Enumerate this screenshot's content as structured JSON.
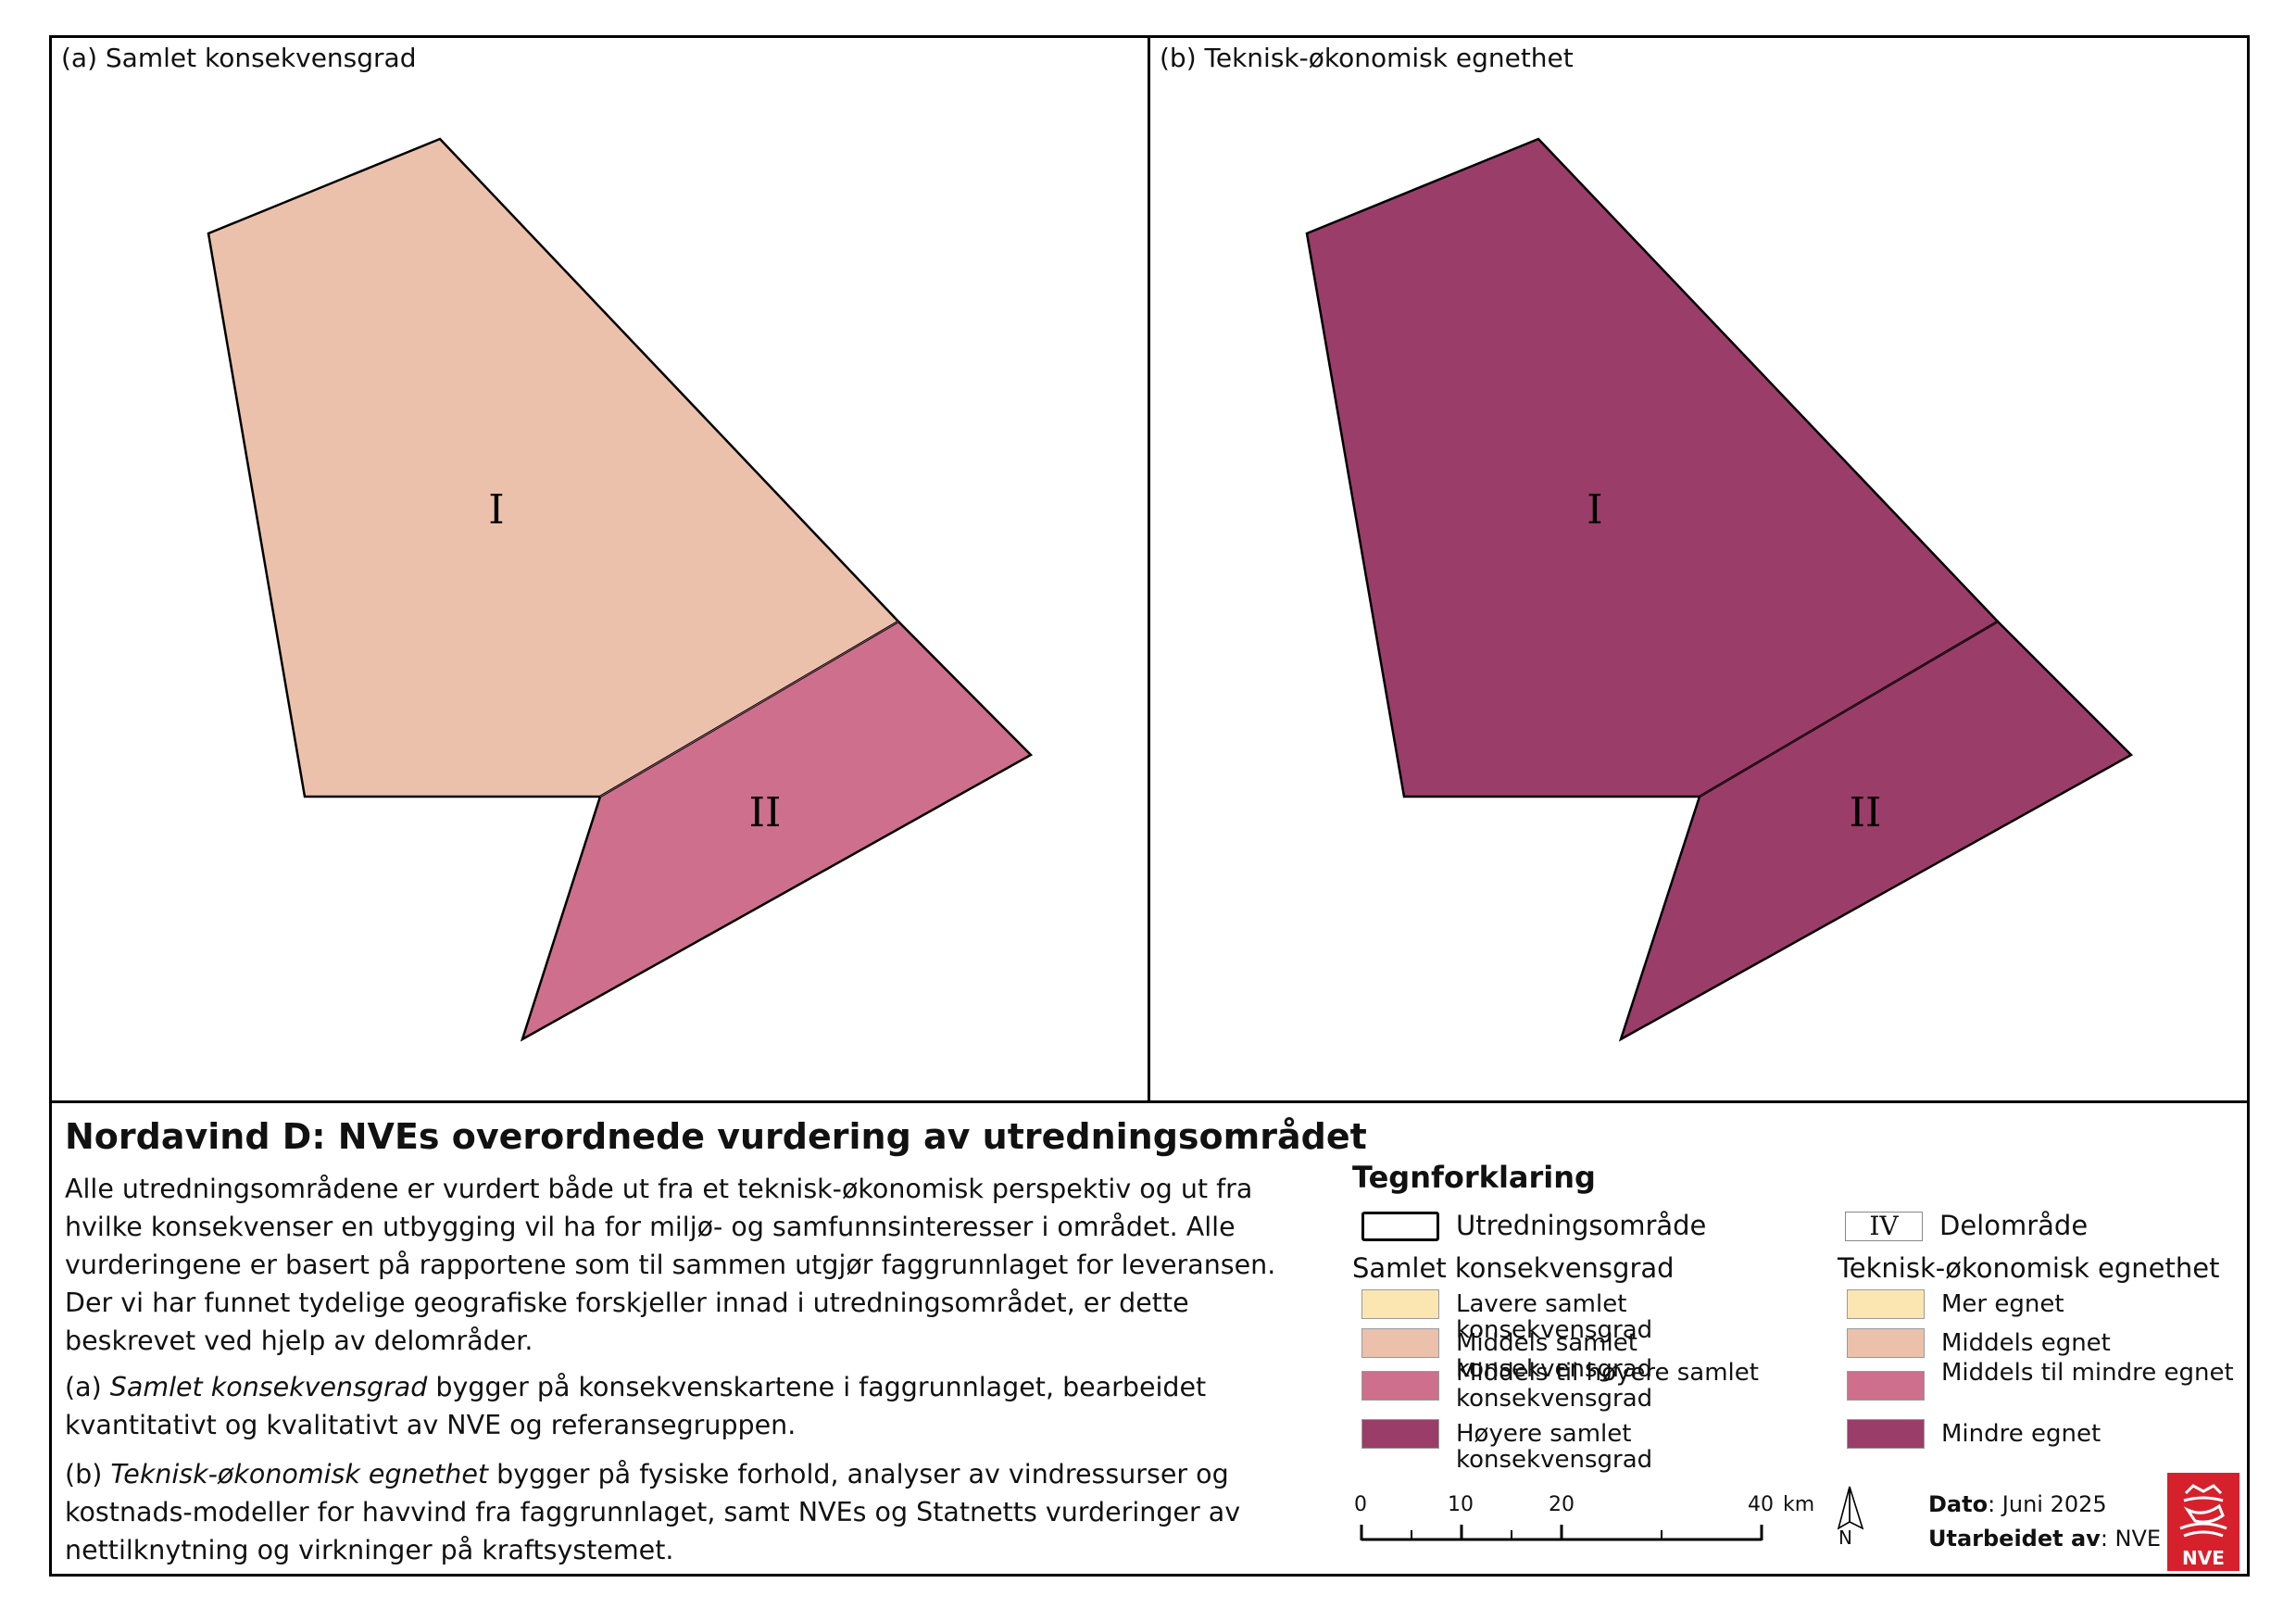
{
  "panels": [
    {
      "title": "(a) Samlet konsekvensgrad",
      "area_labels": [
        "I",
        "II"
      ],
      "colors": [
        "#ecc1ac",
        "#cd6f8d"
      ]
    },
    {
      "title": "(b) Teknisk-økonomisk egnethet",
      "area_labels": [
        "I",
        "II"
      ],
      "colors": [
        "#9b3d69",
        "#9b3d69"
      ]
    }
  ],
  "text": {
    "title": "Nordavind D: NVEs overordnede vurdering av utredningsområdet",
    "intro": "Alle utredningsområdene er vurdert både ut fra et teknisk-økonomisk perspektiv og ut fra hvilke konsekvenser en utbygging vil ha for miljø- og samfunnsinteresser i området. Alle vurderingene er basert på rapportene som til sammen utgjør faggrunnlaget for leveransen. Der vi har funnet tydelige geografiske forskjeller innad i utredningsområdet, er dette beskrevet ved hjelp av delområder.",
    "a_prefix": "(a) ",
    "a_term": "Samlet konsekvensgrad",
    "a_rest": " bygger på konsekvenskartene i faggrunnlaget, bearbeidet kvantitativt og kvalitativt av NVE og referansegruppen.",
    "b_prefix": "(b) ",
    "b_term": "Teknisk-økonomisk egnethet",
    "b_rest": " bygger på fysiske forhold, analyser av vindressurser og kostnads-modeller for havvind fra faggrunnlaget, samt NVEs og Statnetts vurderinger av nettilknytning og virkninger på kraftsystemet."
  },
  "legend": {
    "title": "Tegnforklaring",
    "outline_label": "Utredningsområde",
    "subarea_symbol": "IV",
    "subarea_label": "Delområde",
    "left_heading": "Samlet konsekvensgrad",
    "right_heading": "Teknisk-økonomisk egnethet",
    "left_items": [
      {
        "label": "Lavere samlet konsekvensgrad",
        "color": "#fbe6b1"
      },
      {
        "label": "Middels samlet konsekvensgrad",
        "color": "#ecc1ac"
      },
      {
        "label": "Middels til høyere samlet konsekvensgrad",
        "color": "#cd6f8d"
      },
      {
        "label": "Høyere samlet konsekvensgrad",
        "color": "#9b3d69"
      }
    ],
    "right_items": [
      {
        "label": "Mer egnet",
        "color": "#fbe6b1"
      },
      {
        "label": "Middels egnet",
        "color": "#ecc1ac"
      },
      {
        "label": "Middels til mindre egnet",
        "color": "#cd6f8d"
      },
      {
        "label": "Mindre egnet",
        "color": "#9b3d69"
      }
    ]
  },
  "scale": {
    "ticks": [
      "0",
      "10",
      "20",
      "40"
    ],
    "unit": "km"
  },
  "north_label": "N",
  "meta": {
    "date_label": "Dato",
    "date_value": ": Juni 2025",
    "author_label": "Utarbeidet av",
    "author_value": ": NVE"
  },
  "logo": {
    "text": "NVE",
    "color": "#d6212c"
  }
}
